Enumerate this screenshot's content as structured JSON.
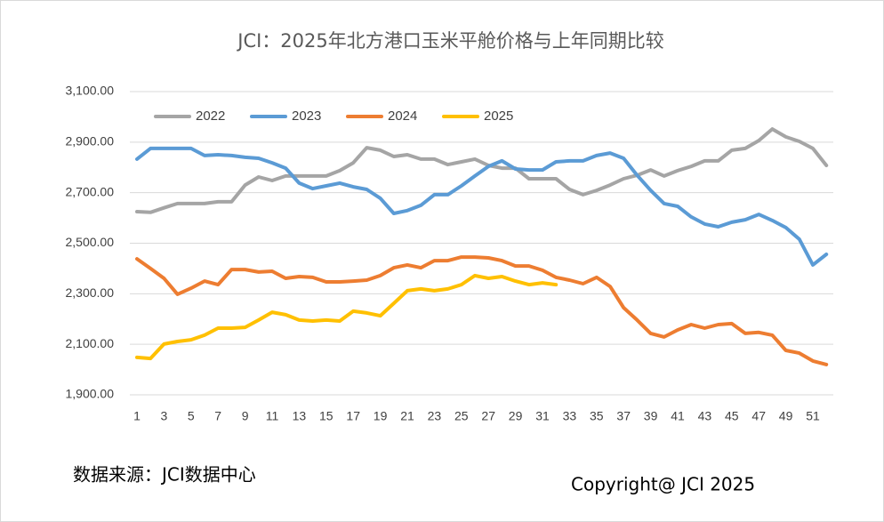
{
  "chart_data": {
    "type": "line",
    "title": "JCI：2025年北方港口玉米平舱价格与上年同期比较",
    "source": "数据来源：JCI数据中心",
    "copyright": "Copyright@ JCI 2025",
    "categories": [
      1,
      null,
      3,
      null,
      5,
      null,
      7,
      null,
      9,
      null,
      11,
      null,
      13,
      null,
      15,
      null,
      17,
      null,
      19,
      null,
      21,
      null,
      23,
      null,
      25,
      null,
      27,
      null,
      29,
      null,
      31,
      null,
      33,
      null,
      35,
      null,
      37,
      null,
      39,
      null,
      41,
      null,
      43,
      null,
      45,
      null,
      47,
      null,
      49,
      null,
      51,
      null
    ],
    "ylim": [
      1900,
      3100
    ],
    "yticks": [
      {
        "value": 1900,
        "label": "1,900.00"
      },
      {
        "value": 2100,
        "label": "2,100.00"
      },
      {
        "value": 2300,
        "label": "2,300.00"
      },
      {
        "value": 2500,
        "label": "2,500.00"
      },
      {
        "value": 2700,
        "label": "2,700.00"
      },
      {
        "value": 2900,
        "label": "2,900.00"
      },
      {
        "value": 3100,
        "label": "3,100.00"
      }
    ],
    "grid": true,
    "legend": "top",
    "series": [
      {
        "name": "2022",
        "color": "#a5a5a5",
        "values": [
          2625,
          2622,
          2640,
          2657,
          2657,
          2657,
          2664,
          2664,
          2730,
          2762,
          2748,
          2766,
          2766,
          2766,
          2766,
          2787,
          2818,
          2878,
          2868,
          2843,
          2850,
          2833,
          2833,
          2811,
          2822,
          2833,
          2808,
          2797,
          2797,
          2755,
          2755,
          2755,
          2713,
          2692,
          2709,
          2730,
          2755,
          2769,
          2790,
          2766,
          2787,
          2804,
          2826,
          2826,
          2868,
          2875,
          2906,
          2952,
          2921,
          2903,
          2875,
          2808
        ]
      },
      {
        "name": "2023",
        "color": "#5b9bd5",
        "values": [
          2833,
          2875,
          2875,
          2875,
          2875,
          2847,
          2850,
          2847,
          2840,
          2836,
          2818,
          2797,
          2738,
          2716,
          2727,
          2738,
          2723,
          2713,
          2678,
          2618,
          2629,
          2650,
          2692,
          2692,
          2727,
          2766,
          2804,
          2826,
          2794,
          2790,
          2790,
          2822,
          2826,
          2826,
          2847,
          2857,
          2836,
          2769,
          2709,
          2657,
          2646,
          2604,
          2576,
          2565,
          2583,
          2593,
          2614,
          2590,
          2562,
          2516,
          2414,
          2456
        ]
      },
      {
        "name": "2024",
        "color": "#ed7d31",
        "values": [
          2438,
          2400,
          2361,
          2298,
          2322,
          2350,
          2336,
          2396,
          2396,
          2386,
          2389,
          2361,
          2368,
          2365,
          2347,
          2347,
          2350,
          2354,
          2372,
          2403,
          2414,
          2403,
          2431,
          2431,
          2445,
          2445,
          2442,
          2431,
          2410,
          2410,
          2393,
          2365,
          2354,
          2340,
          2365,
          2329,
          2245,
          2196,
          2143,
          2129,
          2157,
          2178,
          2164,
          2178,
          2182,
          2143,
          2147,
          2136,
          2076,
          2065,
          2034,
          2020
        ]
      },
      {
        "name": "2025",
        "color": "#ffc000",
        "values": [
          2048,
          2044,
          2101,
          2111,
          2118,
          2136,
          2164,
          2164,
          2167,
          2196,
          2227,
          2217,
          2196,
          2192,
          2196,
          2192,
          2231,
          2224,
          2213,
          2262,
          2312,
          2319,
          2312,
          2319,
          2336,
          2372,
          2361,
          2368,
          2350,
          2336,
          2343,
          2336,
          null,
          null,
          null,
          null,
          null,
          null,
          null,
          null,
          null,
          null,
          null,
          null,
          null,
          null,
          null,
          null,
          null,
          null,
          null,
          null
        ]
      }
    ]
  }
}
